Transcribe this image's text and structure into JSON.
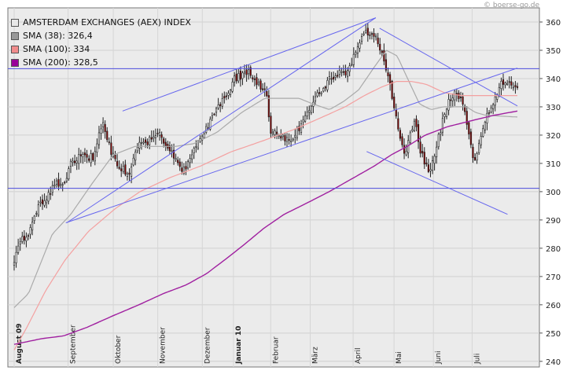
{
  "credit": "© boerse-go.de",
  "chart_data": {
    "type": "candlestick",
    "title": "AMSTERDAM EXCHANGES (AEX) INDEX",
    "ylim": [
      238,
      365
    ],
    "yticks": [
      240,
      250,
      260,
      270,
      280,
      290,
      300,
      310,
      320,
      330,
      340,
      350,
      360
    ],
    "x_months": [
      {
        "label": "August 09",
        "t": 0.0,
        "bold": true
      },
      {
        "label": "September",
        "t": 0.1071,
        "bold": false
      },
      {
        "label": "Oktober",
        "t": 0.197,
        "bold": false
      },
      {
        "label": "November",
        "t": 0.2854,
        "bold": false
      },
      {
        "label": "Dezember",
        "t": 0.3739,
        "bold": false
      },
      {
        "label": "Januar 10",
        "t": 0.4357,
        "bold": true
      },
      {
        "label": "Februar",
        "t": 0.5098,
        "bold": false
      },
      {
        "label": "März",
        "t": 0.5883,
        "bold": false
      },
      {
        "label": "April",
        "t": 0.6736,
        "bold": false
      },
      {
        "label": "Mai",
        "t": 0.7548,
        "bold": false
      },
      {
        "label": "Juni",
        "t": 0.8331,
        "bold": false
      },
      {
        "label": "Juli",
        "t": 0.9101,
        "bold": false
      }
    ],
    "legend": [
      {
        "label": "AMSTERDAM EXCHANGES (AEX) INDEX",
        "color": "#e8e8e8"
      },
      {
        "label": "SMA (38): 326,4",
        "color": "#999999"
      },
      {
        "label": "SMA (100): 334",
        "color": "#f08c8c"
      },
      {
        "label": "SMA (200): 328,5",
        "color": "#990099"
      }
    ],
    "colors": {
      "up": "#ffffff",
      "down": "#8b0000",
      "sma38": "#aaaaaa",
      "sma100": "#f4a0a0",
      "sma200": "#a020a0",
      "trend": "#6666ee",
      "hline": "#4d4ddd"
    },
    "horizontal_lines": [
      343.5,
      301.2
    ],
    "trendlines": [
      {
        "from": [
          0.1044,
          289.0
        ],
        "to": [
          0.7186,
          361.5
        ]
      },
      {
        "from": [
          0.2154,
          328.5
        ],
        "to": [
          0.7186,
          361.5
        ]
      },
      {
        "from": [
          0.1027,
          289.0
        ],
        "to": [
          1.0,
          343.7
        ]
      },
      {
        "from": [
          0.7262,
          357.8
        ],
        "to": [
          1.0,
          330.3
        ]
      },
      {
        "from": [
          0.7005,
          314.2
        ],
        "to": [
          0.9804,
          292.0
        ]
      }
    ],
    "close_anchors": [
      [
        0.0,
        276
      ],
      [
        0.0153,
        283
      ],
      [
        0.0342,
        287
      ],
      [
        0.0519,
        296
      ],
      [
        0.0869,
        303
      ],
      [
        0.1027,
        303
      ],
      [
        0.1128,
        310
      ],
      [
        0.1381,
        313
      ],
      [
        0.1555,
        312
      ],
      [
        0.1768,
        324
      ],
      [
        0.1972,
        312
      ],
      [
        0.2145,
        308
      ],
      [
        0.2299,
        305
      ],
      [
        0.2429,
        316
      ],
      [
        0.2684,
        318
      ],
      [
        0.2895,
        320
      ],
      [
        0.3142,
        314
      ],
      [
        0.3343,
        306
      ],
      [
        0.3576,
        316
      ],
      [
        0.3748,
        321
      ],
      [
        0.3986,
        327
      ],
      [
        0.4193,
        334
      ],
      [
        0.4392,
        340
      ],
      [
        0.4667,
        342
      ],
      [
        0.4822,
        339
      ],
      [
        0.5008,
        334
      ],
      [
        0.5098,
        322
      ],
      [
        0.5395,
        318
      ],
      [
        0.5581,
        320
      ],
      [
        0.5735,
        325
      ],
      [
        0.5883,
        330
      ],
      [
        0.6096,
        336
      ],
      [
        0.6272,
        340
      ],
      [
        0.6409,
        341
      ],
      [
        0.665,
        343
      ],
      [
        0.6882,
        353
      ],
      [
        0.7007,
        357
      ],
      [
        0.7184,
        355
      ],
      [
        0.7334,
        348
      ],
      [
        0.7466,
        338
      ],
      [
        0.7597,
        326
      ],
      [
        0.7765,
        312
      ],
      [
        0.7948,
        325
      ],
      [
        0.8072,
        315
      ],
      [
        0.8244,
        306
      ],
      [
        0.8343,
        313
      ],
      [
        0.8558,
        328
      ],
      [
        0.8724,
        335
      ],
      [
        0.8885,
        333
      ],
      [
        0.9023,
        322
      ],
      [
        0.9142,
        311
      ],
      [
        0.9308,
        322
      ],
      [
        0.9471,
        330
      ],
      [
        0.9673,
        339
      ],
      [
        1.0,
        338
      ]
    ],
    "sma38_anchors": [
      [
        0.0,
        259
      ],
      [
        0.0286,
        264
      ],
      [
        0.0758,
        285
      ],
      [
        0.1126,
        292
      ],
      [
        0.1554,
        303
      ],
      [
        0.1968,
        313
      ],
      [
        0.24,
        316
      ],
      [
        0.2861,
        316
      ],
      [
        0.3204,
        316
      ],
      [
        0.3576,
        317
      ],
      [
        0.4031,
        321
      ],
      [
        0.4521,
        328
      ],
      [
        0.4977,
        333
      ],
      [
        0.5356,
        333
      ],
      [
        0.5663,
        333
      ],
      [
        0.5942,
        331
      ],
      [
        0.6268,
        329
      ],
      [
        0.6554,
        332
      ],
      [
        0.6846,
        336
      ],
      [
        0.7154,
        344
      ],
      [
        0.7397,
        350
      ],
      [
        0.7612,
        348
      ],
      [
        0.7818,
        340
      ],
      [
        0.8056,
        331
      ],
      [
        0.8285,
        329
      ],
      [
        0.8524,
        330
      ],
      [
        0.8758,
        330
      ],
      [
        0.8986,
        330
      ],
      [
        0.917,
        328
      ],
      [
        0.9374,
        327
      ],
      [
        1.0,
        326.4
      ]
    ],
    "sma100_anchors": [
      [
        0.0,
        244
      ],
      [
        0.0252,
        252
      ],
      [
        0.0626,
        265
      ],
      [
        0.1018,
        276
      ],
      [
        0.1479,
        286
      ],
      [
        0.2009,
        294
      ],
      [
        0.2501,
        300
      ],
      [
        0.3101,
        305
      ],
      [
        0.3696,
        309
      ],
      [
        0.4297,
        314
      ],
      [
        0.4945,
        318
      ],
      [
        0.5562,
        322
      ],
      [
        0.6077,
        326
      ],
      [
        0.6577,
        330
      ],
      [
        0.6961,
        334
      ],
      [
        0.7301,
        337
      ],
      [
        0.7597,
        339
      ],
      [
        0.7888,
        339
      ],
      [
        0.8183,
        338
      ],
      [
        0.8548,
        335
      ],
      [
        0.8876,
        334
      ],
      [
        0.9224,
        334
      ],
      [
        0.9546,
        334
      ],
      [
        1.0,
        334
      ]
    ],
    "sma200_anchors": [
      [
        0.0,
        246
      ],
      [
        0.0539,
        248
      ],
      [
        0.098,
        249
      ],
      [
        0.1444,
        252
      ],
      [
        0.1949,
        256
      ],
      [
        0.2479,
        260
      ],
      [
        0.297,
        264
      ],
      [
        0.3416,
        267
      ],
      [
        0.3822,
        271
      ],
      [
        0.4193,
        276
      ],
      [
        0.4551,
        281
      ],
      [
        0.4958,
        287
      ],
      [
        0.5367,
        292
      ],
      [
        0.582,
        296
      ],
      [
        0.6259,
        300
      ],
      [
        0.6755,
        305
      ],
      [
        0.7149,
        309
      ],
      [
        0.7492,
        313
      ],
      [
        0.7809,
        316
      ],
      [
        0.817,
        320
      ],
      [
        0.8616,
        323
      ],
      [
        0.9064,
        325
      ],
      [
        0.9532,
        327
      ],
      [
        1.0,
        328.5
      ]
    ]
  }
}
